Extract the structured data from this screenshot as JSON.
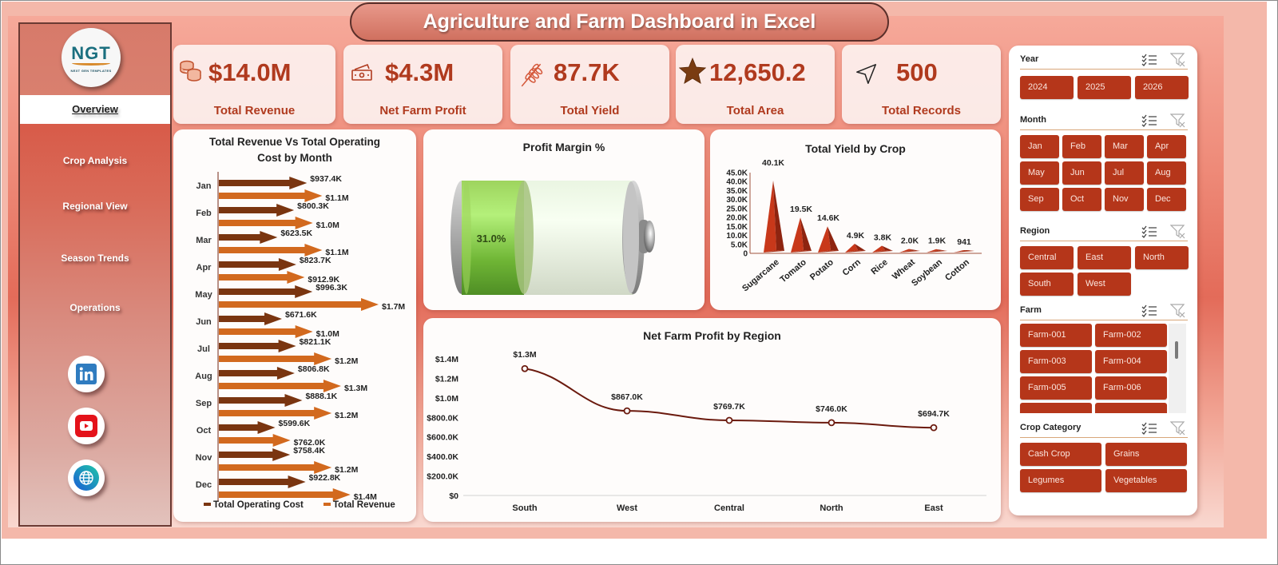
{
  "title": "Agriculture and Farm Dashboard in Excel",
  "logo": {
    "text": "NGT",
    "subtitle": "NEXT GEN TEMPLATES"
  },
  "sidebar": {
    "items": [
      {
        "label": "Overview",
        "active": true
      },
      {
        "label": "Crop Analysis",
        "active": false
      },
      {
        "label": "Regional View",
        "active": false
      },
      {
        "label": "Season Trends",
        "active": false
      },
      {
        "label": "Operations",
        "active": false
      }
    ],
    "social": [
      {
        "name": "linkedin-icon",
        "label": "in"
      },
      {
        "name": "youtube-icon",
        "label": "YouTube"
      },
      {
        "name": "globe-icon",
        "label": "Website"
      }
    ]
  },
  "kpis": [
    {
      "icon": "coins-icon",
      "value": "$14.0M",
      "label": "Total Revenue"
    },
    {
      "icon": "cash-icon",
      "value": "$4.3M",
      "label": "Net Farm Profit"
    },
    {
      "icon": "wheat-icon",
      "value": "87.7K",
      "label": "Total Yield"
    },
    {
      "icon": "star-icon",
      "value": "12,650.2",
      "label": "Total Area"
    },
    {
      "icon": "navigation-arrow-icon",
      "value": "500",
      "label": "Total Records"
    }
  ],
  "colors": {
    "accent": "#b03a1e",
    "chip": "#b5361a",
    "cost_bar": "#7a3510",
    "revenue_bar": "#d2691e",
    "line": "#6b1a0e",
    "battery_fill": "#8fd14f",
    "pyramid": "#c8381a"
  },
  "chart_data": [
    {
      "type": "bar",
      "orientation": "horizontal",
      "title": "Total Revenue Vs Total Operating Cost by Month",
      "categories": [
        "Jan",
        "Feb",
        "Mar",
        "Apr",
        "May",
        "Jun",
        "Jul",
        "Aug",
        "Sep",
        "Oct",
        "Nov",
        "Dec"
      ],
      "series": [
        {
          "name": "Total Operating Cost",
          "values": [
            937.4,
            800.3,
            623.5,
            823.7,
            996.3,
            671.6,
            821.1,
            806.8,
            888.1,
            599.6,
            758.4,
            922.8
          ],
          "labels": [
            "$937.4K",
            "$800.3K",
            "$623.5K",
            "$823.7K",
            "$996.3K",
            "$671.6K",
            "$821.1K",
            "$806.8K",
            "$888.1K",
            "$599.6K",
            "$758.4K",
            "$922.8K"
          ]
        },
        {
          "name": "Total Revenue",
          "values": [
            1100,
            1000,
            1100,
            912.9,
            1700,
            1000,
            1200,
            1300,
            1200,
            762.0,
            1200,
            1400
          ],
          "labels": [
            "$1.1M",
            "$1.0M",
            "$1.1M",
            "$912.9K",
            "$1.7M",
            "$1.0M",
            "$1.2M",
            "$1.3M",
            "$1.2M",
            "$762.0K",
            "$1.2M",
            "$1.4M"
          ]
        }
      ],
      "unit": "$K",
      "legend": [
        "Total Operating Cost",
        "Total Revenue"
      ],
      "legend_position": "bottom"
    },
    {
      "type": "gauge",
      "title": "Profit Margin %",
      "value": 31.0,
      "label": "31.0%",
      "style": "battery"
    },
    {
      "type": "bar",
      "style": "pyramid",
      "title": "Total Yield by Crop",
      "categories": [
        "Sugarcane",
        "Tomato",
        "Potato",
        "Corn",
        "Rice",
        "Wheat",
        "Soybean",
        "Cotton"
      ],
      "values": [
        40100,
        19500,
        14600,
        4900,
        3800,
        2000,
        1900,
        941
      ],
      "labels": [
        "40.1K",
        "19.5K",
        "14.6K",
        "4.9K",
        "3.8K",
        "2.0K",
        "1.9K",
        "941"
      ],
      "yticks": [
        "0",
        "5.0K",
        "10.0K",
        "15.0K",
        "20.0K",
        "25.0K",
        "30.0K",
        "35.0K",
        "40.0K",
        "45.0K"
      ],
      "ylim": [
        0,
        45000
      ]
    },
    {
      "type": "line",
      "title": "Net Farm Profit by Region",
      "categories": [
        "South",
        "West",
        "Central",
        "North",
        "East"
      ],
      "values": [
        1300000,
        867000,
        769700,
        746000,
        694700
      ],
      "labels": [
        "$1.3M",
        "$867.0K",
        "$769.7K",
        "$746.0K",
        "$694.7K"
      ],
      "yticks": [
        "$0",
        "$200.0K",
        "$400.0K",
        "$600.0K",
        "$800.0K",
        "$1.0M",
        "$1.2M",
        "$1.4M"
      ],
      "ylim": [
        0,
        1400000
      ],
      "grid": false
    }
  ],
  "slicers": [
    {
      "name": "Year",
      "items": [
        "2024",
        "2025",
        "2026"
      ]
    },
    {
      "name": "Month",
      "items": [
        "Jan",
        "Feb",
        "Mar",
        "Apr",
        "May",
        "Jun",
        "Jul",
        "Aug",
        "Sep",
        "Oct",
        "Nov",
        "Dec"
      ]
    },
    {
      "name": "Region",
      "items": [
        "Central",
        "East",
        "North",
        "South",
        "West"
      ]
    },
    {
      "name": "Farm",
      "items": [
        "Farm-001",
        "Farm-002",
        "Farm-003",
        "Farm-004",
        "Farm-005",
        "Farm-006"
      ]
    },
    {
      "name": "Crop Category",
      "items": [
        "Cash Crop",
        "Grains",
        "Legumes",
        "Vegetables"
      ]
    }
  ]
}
